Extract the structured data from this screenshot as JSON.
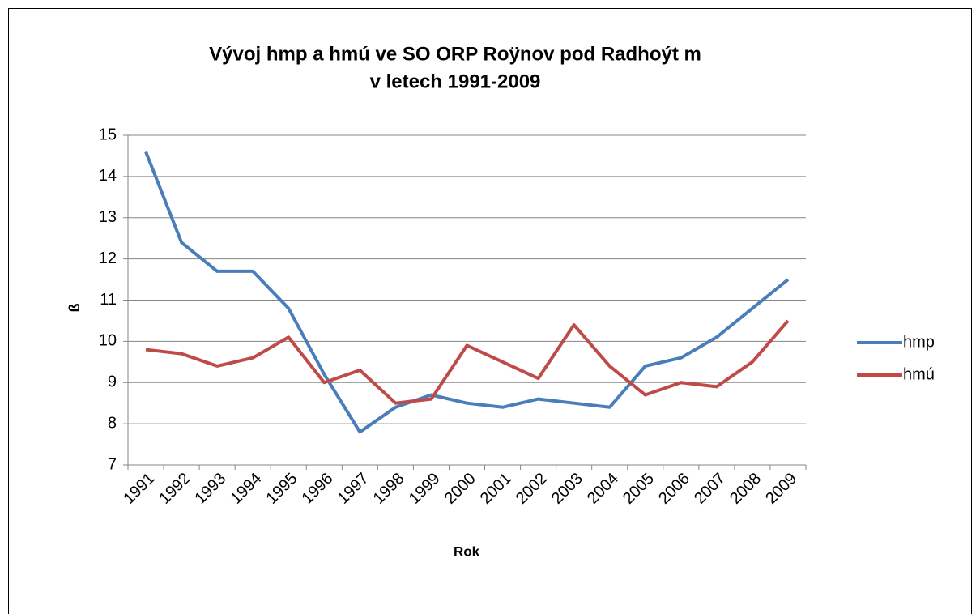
{
  "chart_data": {
    "type": "line",
    "title": [
      "Vývoj hmp a hmú ve SO ORP Roÿnov pod Radhoýt m",
      "v letech 1991-2009"
    ],
    "y_label": "ß",
    "x_label": "Rok",
    "categories": [
      "1991",
      "1992",
      "1993",
      "1994",
      "1995",
      "1996",
      "1997",
      "1998",
      "1999",
      "2000",
      "2001",
      "2002",
      "2003",
      "2004",
      "2005",
      "2006",
      "2007",
      "2008",
      "2009"
    ],
    "series": [
      {
        "name": "hmp",
        "color": "#4a7ebb",
        "values": [
          14.6,
          12.4,
          11.7,
          11.7,
          10.8,
          9.2,
          7.8,
          8.4,
          8.7,
          8.5,
          8.4,
          8.6,
          8.5,
          8.4,
          9.4,
          9.6,
          10.1,
          10.8,
          11.5
        ]
      },
      {
        "name": "hmú",
        "color": "#be4b48",
        "values": [
          9.8,
          9.7,
          9.4,
          9.6,
          10.1,
          9.0,
          9.3,
          8.5,
          8.6,
          9.9,
          9.5,
          9.1,
          10.4,
          9.4,
          8.7,
          9.0,
          8.9,
          9.5,
          10.5
        ]
      }
    ],
    "ylim": [
      7,
      15
    ],
    "yticks": [
      7,
      8,
      9,
      10,
      11,
      12,
      13,
      14,
      15
    ],
    "grid": true,
    "legend": "right"
  }
}
